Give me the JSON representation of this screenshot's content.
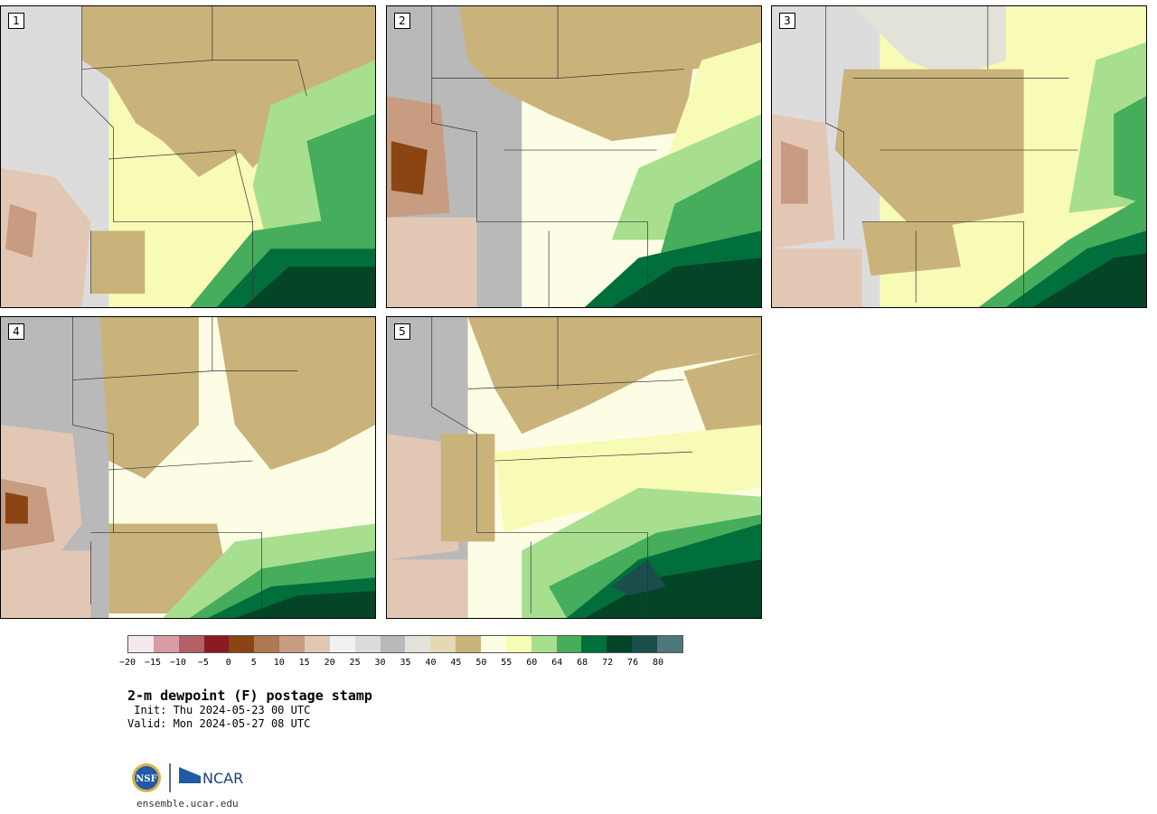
{
  "panels": [
    {
      "label": "1",
      "variant": 0
    },
    {
      "label": "2",
      "variant": 1
    },
    {
      "label": "3",
      "variant": 2
    },
    {
      "label": "4",
      "variant": 3
    },
    {
      "label": "5",
      "variant": 4
    }
  ],
  "colorbar": {
    "colors": [
      "#f3e9ea",
      "#d79ca4",
      "#b55f66",
      "#8b1a24",
      "#8a4512",
      "#ad7852",
      "#c79c80",
      "#e3c7b5",
      "#f1f1f1",
      "#dcdcdc",
      "#b9b9b9",
      "#e2e2d8",
      "#e6d8b3",
      "#c9b37a",
      "#fdfde6",
      "#f7fbb6",
      "#a7df8f",
      "#45ad5b",
      "#006f3b",
      "#044427",
      "#1b4d4b",
      "#4e777b"
    ],
    "tick_labels": [
      "−20",
      "−15",
      "−10",
      "−5",
      "0",
      "5",
      "10",
      "15",
      "20",
      "25",
      "30",
      "35",
      "40",
      "45",
      "50",
      "55",
      "60",
      "64",
      "68",
      "72",
      "76",
      "80"
    ]
  },
  "title": "2-m dewpoint (F) postage stamp",
  "init": " Init: Thu 2024-05-23 00 UTC",
  "valid": "Valid: Mon 2024-05-27 08 UTC",
  "logo": {
    "nsf_text": "NSF",
    "ncar_text": "NCAR"
  },
  "site": "ensemble.ucar.edu"
}
